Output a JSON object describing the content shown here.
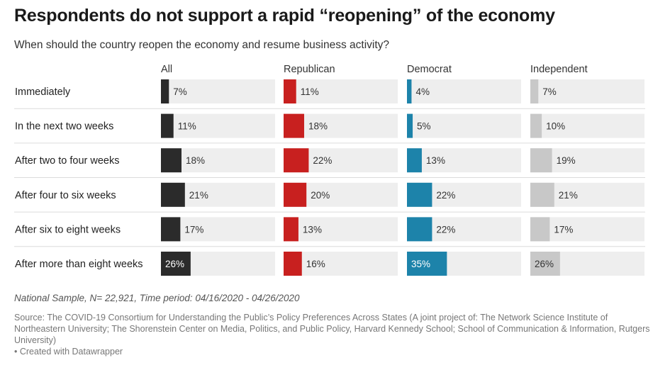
{
  "title": "Respondents do not support a rapid “reopening” of the economy",
  "subtitle": "When should the country reopen the economy and resume business activity?",
  "notes": "National Sample, N= 22,921, Time period: 04/16/2020 - 04/26/2020",
  "source": "Source: The COVID-19 Consortium for Understanding the Public’s Policy Preferences Across States (A joint project of: The Network Science Institute of Northeastern University; The Shorenstein Center on Media, Politics, and Public Policy, Harvard Kennedy School; School of Communication & Information, Rutgers University)",
  "credit": "• Created with Datawrapper",
  "chart_data": {
    "type": "bar",
    "orientation": "horizontal",
    "layout": "small-multiples",
    "categories": [
      "Immediately",
      "In the next two weeks",
      "After two to four weeks",
      "After four to six weeks",
      "After six to eight weeks",
      "After more than eight weeks"
    ],
    "value_format": "{v}%",
    "xlim": [
      0,
      100
    ],
    "series": [
      {
        "name": "All",
        "color": "#2b2b2b",
        "values": [
          7,
          11,
          18,
          21,
          17,
          26
        ]
      },
      {
        "name": "Republican",
        "color": "#c8201f",
        "values": [
          11,
          18,
          22,
          20,
          13,
          16
        ]
      },
      {
        "name": "Democrat",
        "color": "#1d83aa",
        "values": [
          4,
          5,
          13,
          22,
          22,
          35
        ]
      },
      {
        "name": "Independent",
        "color": "#c8c8c8",
        "values": [
          7,
          10,
          19,
          21,
          17,
          26
        ]
      }
    ],
    "background_track_color": "#eeeeee",
    "separator_color": "#dcdcdc"
  }
}
